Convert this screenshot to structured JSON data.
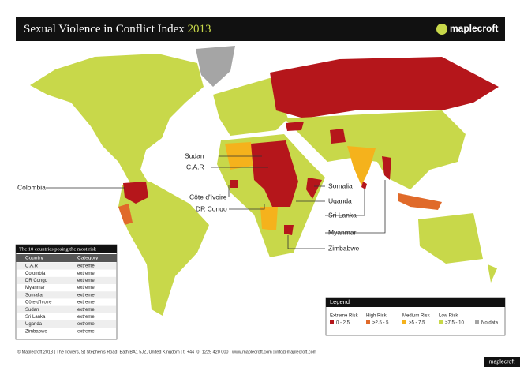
{
  "header": {
    "title": "Sexual Violence in Conflict Index",
    "year": "2013",
    "logo": "maplecroft"
  },
  "map_labels": [
    "Sudan",
    "C.A.R",
    "Côte d'Ivoire",
    "DR Congo",
    "Colombia",
    "Somalia",
    "Uganda",
    "Sri Lanka",
    "Myanmar",
    "Zimbabwe"
  ],
  "table": {
    "title": "The 10 countries posing the most risk",
    "columns": [
      "Country",
      "Category"
    ],
    "rows": [
      [
        "C.A.R",
        "extreme"
      ],
      [
        "Colombia",
        "extreme"
      ],
      [
        "DR Congo",
        "extreme"
      ],
      [
        "Myanmar",
        "extreme"
      ],
      [
        "Somalia",
        "extreme"
      ],
      [
        "Côte d'Ivoire",
        "extreme"
      ],
      [
        "Sudan",
        "extreme"
      ],
      [
        "Sri Lanka",
        "extreme"
      ],
      [
        "Uganda",
        "extreme"
      ],
      [
        "Zimbabwe",
        "extreme"
      ]
    ]
  },
  "legend": {
    "title": "Legend",
    "items": [
      {
        "name": "Extreme Risk",
        "range": "0 - 2.5",
        "color": "#b5161b"
      },
      {
        "name": "High Risk",
        "range": ">2.5 - 5",
        "color": "#e06a2a"
      },
      {
        "name": "Medium Risk",
        "range": ">5 - 7.5",
        "color": "#f5b21c"
      },
      {
        "name": "Low Risk",
        "range": ">7.5 - 10",
        "color": "#c8d84a"
      },
      {
        "name": null,
        "range": "No data",
        "color": "#a5a5a5"
      }
    ]
  },
  "footer": "© Maplecroft 2013 | The Towers, St Stephen's Road, Bath BA1 5JZ, United Kingdom | t: +44 (0) 1225 420 000 | www.maplecroft.com | info@maplecroft.com",
  "watermark": "maplecroft"
}
